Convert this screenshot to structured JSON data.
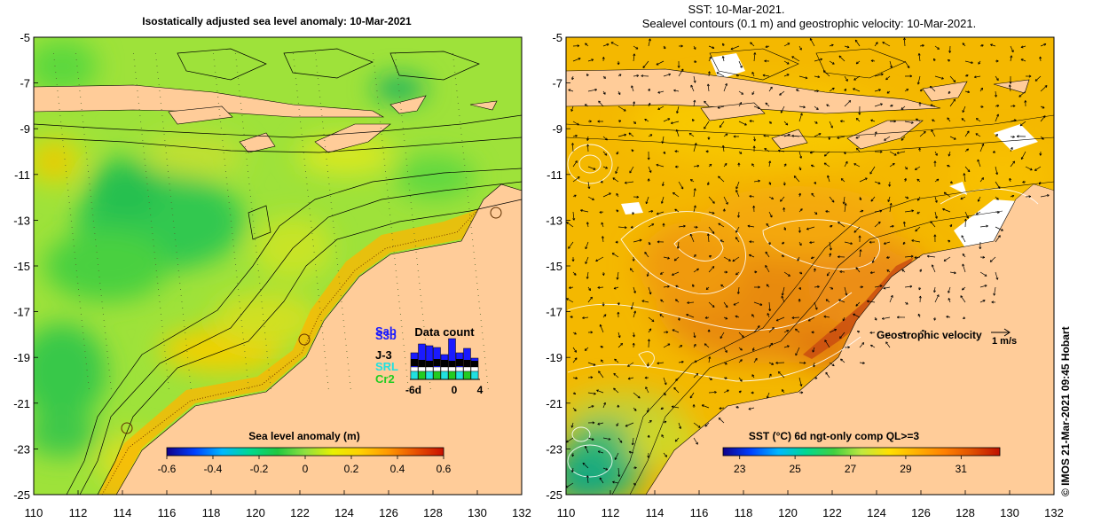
{
  "left_panel": {
    "title": "Isostatically adjusted sea level anomaly: 10-Mar-2021",
    "colorbar": {
      "label": "Sea level anomaly (m)",
      "ticks": [
        "-0.6",
        "-0.4",
        "-0.2",
        "0",
        "0.2",
        "0.4",
        "0.6"
      ]
    },
    "data_count": {
      "title": "Data count",
      "legend": [
        {
          "label": "Sab",
          "color": "#1a1aff"
        },
        {
          "label": "S3b",
          "color": "#1a1aff"
        },
        {
          "label": "J-3",
          "color": "#000000"
        },
        {
          "label": "SRL",
          "color": "#22e0e0"
        },
        {
          "label": "Cr2",
          "color": "#22cc22"
        }
      ],
      "x_ticks": [
        "-6d",
        "0",
        "4"
      ]
    }
  },
  "right_panel": {
    "title_line1": "SST: 10-Mar-2021.",
    "title_line2": "Sealevel contours (0.1 m) and geostrophic velocity: 10-Mar-2021.",
    "colorbar": {
      "label": "SST (°C) 6d ngt-only comp QL>=3",
      "ticks": [
        "23",
        "25",
        "27",
        "29",
        "31"
      ]
    },
    "velocity_label": "Geostrophic velocity",
    "velocity_scale": "1 m/s"
  },
  "axes": {
    "x_ticks": [
      "110",
      "112",
      "114",
      "116",
      "118",
      "120",
      "122",
      "124",
      "126",
      "128",
      "130",
      "132"
    ],
    "y_ticks": [
      "-5",
      "-7",
      "-9",
      "-11",
      "-13",
      "-15",
      "-17",
      "-19",
      "-21",
      "-23",
      "-25"
    ]
  },
  "credit": "© IMOS 21-Mar-2021 09:45 Hobart",
  "colors": {
    "land": "#ffcc99",
    "sla_scale": [
      "#10008a",
      "#0040ff",
      "#00b8ff",
      "#00d890",
      "#20c840",
      "#90e040",
      "#e8f000",
      "#ffd000",
      "#ff9800",
      "#e85000",
      "#c81000"
    ],
    "sst_scale": [
      "#10008a",
      "#0040ff",
      "#00b8ff",
      "#00d890",
      "#40d040",
      "#c0e840",
      "#ffe000",
      "#ffb000",
      "#ff8000",
      "#e05000",
      "#c01000"
    ]
  }
}
